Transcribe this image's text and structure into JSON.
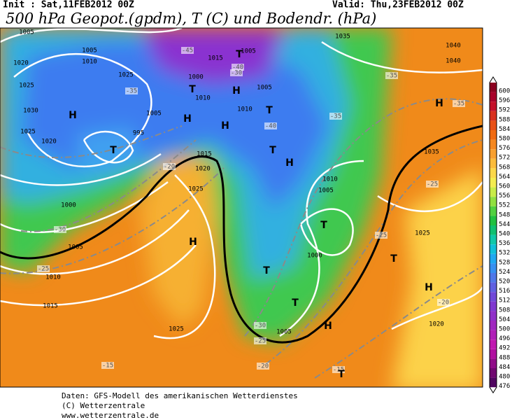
{
  "header": {
    "init": "Init : Sat,11FEB2012 00Z",
    "valid": "Valid: Thu,23FEB2012 00Z",
    "title": "500 hPa Geopot.(gpdm), T (C) und Bodendr. (hPa)"
  },
  "colorbar": {
    "labels": [
      600,
      596,
      592,
      588,
      584,
      580,
      576,
      572,
      568,
      564,
      560,
      556,
      552,
      548,
      544,
      540,
      536,
      532,
      528,
      524,
      520,
      516,
      512,
      508,
      504,
      500,
      496,
      492,
      488,
      484,
      480,
      476
    ],
    "colors": [
      "#8b0020",
      "#a8002a",
      "#c4102a",
      "#d8301e",
      "#e85016",
      "#f06a10",
      "#f58820",
      "#f8a030",
      "#fbbc3c",
      "#fcd84a",
      "#f4ec50",
      "#c8ec48",
      "#90e040",
      "#50d040",
      "#20c040",
      "#10c070",
      "#10c8a8",
      "#10c0d8",
      "#20a8f0",
      "#3890f0",
      "#5078e8",
      "#6060e0",
      "#7048d8",
      "#8038d0",
      "#9030c8",
      "#a028c0",
      "#b020b8",
      "#c018b0",
      "#b010a0",
      "#900c88",
      "#700870",
      "#500660"
    ]
  },
  "map": {
    "labels": [
      "1005",
      "1020",
      "1025",
      "1030",
      "1025",
      "1020",
      "1005",
      "1010",
      "1025",
      "1000",
      "1010",
      "1015",
      "1005",
      "1005",
      "1010",
      "995",
      "1005",
      "1015",
      "1020",
      "1025",
      "1000",
      "1005",
      "1010",
      "1015",
      "1025",
      "1010",
      "1005",
      "1000",
      "1005",
      "1035",
      "1025",
      "1020",
      "1040",
      "1040",
      "1035",
      "-45",
      "-40",
      "-35",
      "-35",
      "-35",
      "-35",
      "-30",
      "-25",
      "-30",
      "-25",
      "-30",
      "-25",
      "-20",
      "-15",
      "-15",
      "-20",
      "-25",
      "-20",
      "-40",
      "T",
      "T",
      "H",
      "T",
      "H",
      "T",
      "H",
      "H",
      "T",
      "H",
      "H",
      "T",
      "T",
      "T",
      "H",
      "H",
      "H",
      "T",
      "T"
    ]
  },
  "footer": {
    "line1": "Daten: GFS-Modell des amerikanischen Wetterdienstes",
    "line2": "(C) Wetterzentrale",
    "line3": "www.wetterzentrale.de"
  }
}
